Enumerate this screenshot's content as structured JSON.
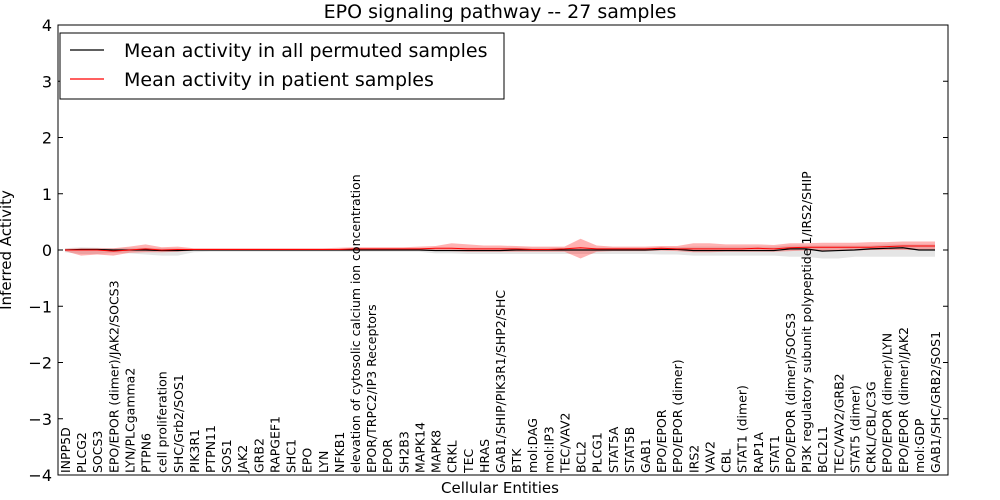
{
  "chart_data": {
    "type": "line",
    "title": "EPO signaling pathway -- 27 samples",
    "xlabel": "Cellular Entities",
    "ylabel": "Inferred Activity",
    "ylim": [
      -4,
      4
    ],
    "yticks": [
      4,
      3,
      2,
      1,
      0,
      -1,
      -2,
      -3,
      -4
    ],
    "ytick_labels": [
      "4",
      "3",
      "2",
      "1",
      "0",
      "−1",
      "−2",
      "−3",
      "−4"
    ],
    "legend_position": "top-left",
    "categories": [
      "INPP5D",
      "PLCG2",
      "SOCS3",
      "EPO/EPOR (dimer)/JAK2/SOCS3",
      "LYN/PLCgamma2",
      "PTPN6",
      "cell proliferation",
      "SHC/Grb2/SOS1",
      "PIK3R1",
      "PTPN11",
      "SOS1",
      "JAK2",
      "GRB2",
      "RAPGEF1",
      "SHC1",
      "EPO",
      "LYN",
      "NFKB1",
      "elevation of cytosolic calcium ion concentration",
      "EPOR/TRPC2/IP3 Receptors",
      "EPOR",
      "SH2B3",
      "MAPK14",
      "MAPK8",
      "CRKL",
      "TEC",
      "HRAS",
      "GAB1/SHIP/PIK3R1/SHP2/SHC",
      "BTK",
      "mol:DAG",
      "mol:IP3",
      "TEC/VAV2",
      "BCL2",
      "PLCG1",
      "STAT5A",
      "STAT5B",
      "GAB1",
      "EPO/EPOR",
      "EPO/EPOR (dimer)",
      "IRS2",
      "VAV2",
      "CBL",
      "STAT1 (dimer)",
      "RAP1A",
      "STAT1",
      "EPO/EPOR (dimer)/SOCS3",
      "PI3K regulatory subunit polypeptide 1/IRS2/SHIP",
      "BCL2L1",
      "TEC/VAV2/GRB2",
      "STAT5 (dimer)",
      "CRKL/CBL/C3G",
      "EPO/EPOR (dimer)/LYN",
      "EPO/EPOR (dimer)/JAK2",
      "mol:GDP",
      "GAB1/SHC/GRB2/SOS1"
    ],
    "series": [
      {
        "name": "Mean activity in all permuted samples",
        "color": "#000000",
        "values": [
          0.0,
          0.01,
          0.01,
          0.0,
          0.0,
          0.0,
          -0.01,
          -0.01,
          0.0,
          0.0,
          0.0,
          0.0,
          0.0,
          0.0,
          0.0,
          0.0,
          0.0,
          0.0,
          0.0,
          0.0,
          0.0,
          0.0,
          0.0,
          -0.01,
          -0.01,
          -0.01,
          -0.01,
          -0.01,
          0.0,
          0.0,
          0.0,
          0.0,
          0.0,
          0.0,
          0.0,
          0.0,
          0.0,
          0.01,
          0.01,
          -0.01,
          -0.01,
          -0.01,
          -0.01,
          -0.01,
          -0.01,
          0.02,
          0.02,
          -0.02,
          -0.01,
          0.0,
          0.02,
          0.03,
          0.04,
          0.0,
          0.0
        ],
        "upper": [
          0.03,
          0.05,
          0.04,
          0.03,
          0.04,
          0.04,
          0.03,
          0.03,
          0.02,
          0.02,
          0.02,
          0.02,
          0.02,
          0.02,
          0.02,
          0.02,
          0.02,
          0.02,
          0.02,
          0.02,
          0.02,
          0.02,
          0.02,
          0.04,
          0.04,
          0.04,
          0.04,
          0.04,
          0.04,
          0.04,
          0.04,
          0.04,
          0.04,
          0.04,
          0.04,
          0.04,
          0.04,
          0.05,
          0.05,
          0.06,
          0.06,
          0.06,
          0.06,
          0.06,
          0.06,
          0.08,
          0.08,
          0.08,
          0.08,
          0.08,
          0.08,
          0.1,
          0.1,
          0.1,
          0.1
        ],
        "lower": [
          -0.04,
          -0.07,
          -0.07,
          -0.05,
          -0.06,
          -0.08,
          -0.1,
          -0.1,
          -0.04,
          -0.03,
          -0.03,
          -0.03,
          -0.03,
          -0.03,
          -0.03,
          -0.03,
          -0.03,
          -0.03,
          -0.03,
          -0.03,
          -0.03,
          -0.03,
          -0.03,
          -0.06,
          -0.06,
          -0.07,
          -0.07,
          -0.07,
          -0.07,
          -0.07,
          -0.07,
          -0.07,
          -0.07,
          -0.07,
          -0.07,
          -0.07,
          -0.07,
          -0.08,
          -0.08,
          -0.1,
          -0.1,
          -0.1,
          -0.1,
          -0.1,
          -0.1,
          -0.12,
          -0.12,
          -0.15,
          -0.15,
          -0.12,
          -0.12,
          -0.12,
          -0.12,
          -0.12,
          -0.12
        ]
      },
      {
        "name": "Mean activity in patient samples",
        "color": "#ff0000",
        "values": [
          0.0,
          0.0,
          0.0,
          -0.02,
          0.0,
          0.02,
          0.0,
          0.01,
          0.01,
          0.01,
          0.01,
          0.01,
          0.01,
          0.01,
          0.01,
          0.01,
          0.01,
          0.01,
          0.02,
          0.02,
          0.02,
          0.02,
          0.02,
          0.03,
          0.03,
          0.02,
          0.02,
          0.02,
          0.02,
          0.01,
          0.01,
          0.02,
          0.04,
          0.02,
          0.02,
          0.02,
          0.02,
          0.03,
          0.02,
          0.02,
          0.02,
          0.02,
          0.02,
          0.03,
          0.02,
          0.04,
          0.05,
          0.05,
          0.05,
          0.05,
          0.05,
          0.06,
          0.07,
          0.07,
          0.07
        ],
        "upper": [
          0.02,
          0.03,
          0.03,
          0.03,
          0.06,
          0.1,
          0.05,
          0.06,
          0.03,
          0.03,
          0.03,
          0.03,
          0.03,
          0.03,
          0.03,
          0.03,
          0.03,
          0.04,
          0.05,
          0.05,
          0.05,
          0.05,
          0.06,
          0.07,
          0.12,
          0.1,
          0.08,
          0.08,
          0.07,
          0.06,
          0.06,
          0.06,
          0.2,
          0.08,
          0.06,
          0.06,
          0.06,
          0.07,
          0.07,
          0.12,
          0.12,
          0.1,
          0.1,
          0.1,
          0.09,
          0.12,
          0.12,
          0.13,
          0.13,
          0.13,
          0.14,
          0.14,
          0.15,
          0.15,
          0.15
        ],
        "lower": [
          -0.02,
          -0.1,
          -0.08,
          -0.1,
          -0.05,
          -0.04,
          -0.04,
          -0.03,
          -0.01,
          -0.01,
          -0.01,
          -0.01,
          -0.01,
          -0.01,
          -0.01,
          -0.01,
          -0.01,
          -0.01,
          -0.01,
          -0.01,
          -0.01,
          -0.01,
          -0.01,
          -0.01,
          -0.02,
          -0.03,
          -0.03,
          -0.03,
          -0.03,
          -0.03,
          -0.03,
          -0.03,
          -0.15,
          -0.03,
          -0.02,
          -0.02,
          -0.02,
          -0.01,
          -0.02,
          -0.04,
          -0.04,
          -0.03,
          -0.03,
          -0.03,
          -0.03,
          -0.02,
          -0.01,
          -0.01,
          -0.01,
          -0.01,
          0.0,
          0.0,
          0.0,
          0.0,
          0.0
        ]
      }
    ]
  }
}
